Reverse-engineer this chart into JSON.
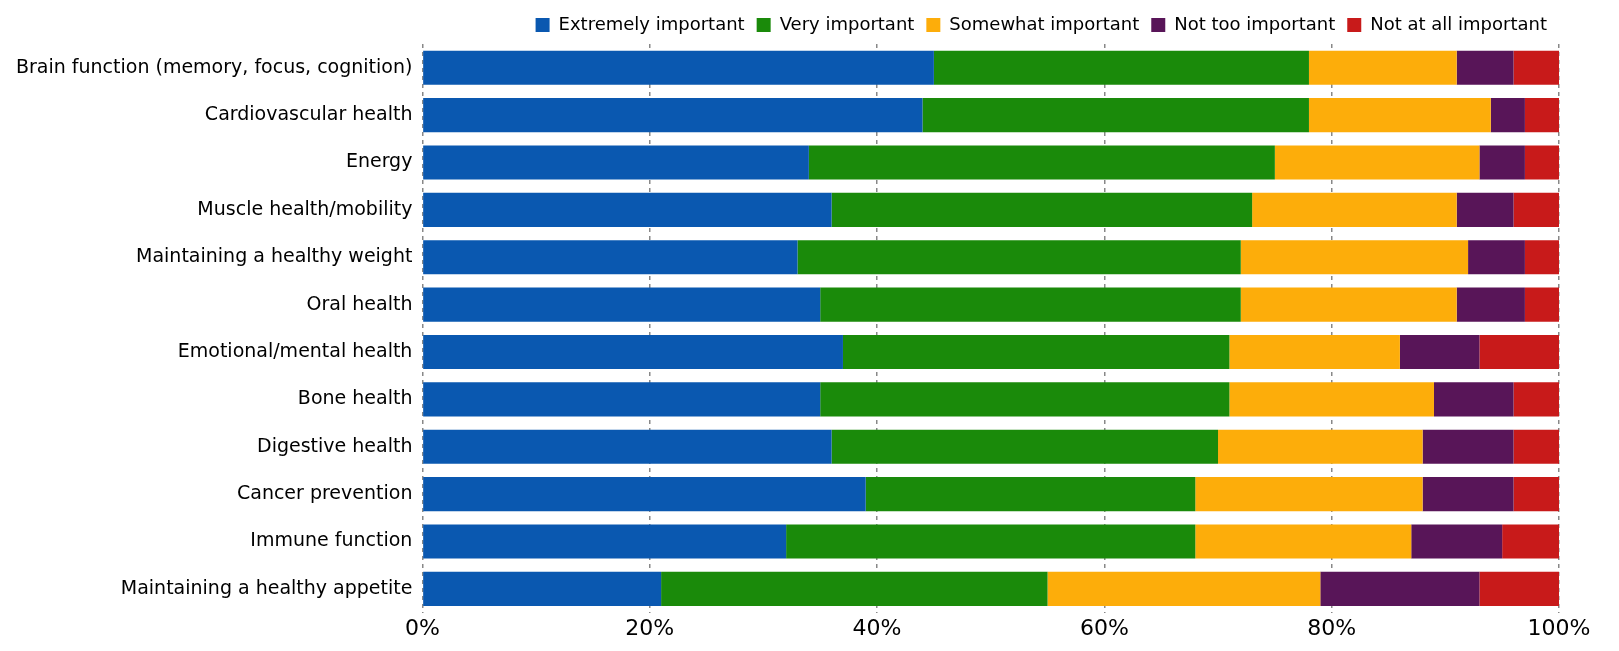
{
  "chart_data": {
    "type": "bar",
    "orientation": "horizontal",
    "stacked": true,
    "categories": [
      "Brain function (memory, focus, cognition)",
      "Cardiovascular health",
      "Energy",
      "Muscle health/mobility",
      "Maintaining a healthy weight",
      "Oral health",
      "Emotional/mental health",
      "Bone health",
      "Digestive health",
      "Cancer prevention",
      "Immune function",
      "Maintaining a healthy appetite"
    ],
    "series": [
      {
        "name": "Extremely important",
        "color": "#0a58b0",
        "values": [
          45,
          44,
          34,
          36,
          33,
          35,
          37,
          35,
          36,
          39,
          32,
          21
        ]
      },
      {
        "name": "Very important",
        "color": "#1a8a0a",
        "values": [
          33,
          34,
          41,
          37,
          39,
          37,
          34,
          36,
          34,
          29,
          36,
          34
        ]
      },
      {
        "name": "Somewhat important",
        "color": "#fdad0a",
        "values": [
          13,
          16,
          18,
          18,
          20,
          19,
          15,
          18,
          18,
          20,
          19,
          24
        ]
      },
      {
        "name": "Not too important",
        "color": "#581558",
        "values": [
          5,
          3,
          4,
          5,
          5,
          6,
          7,
          7,
          8,
          8,
          8,
          14
        ]
      },
      {
        "name": "Not at all important",
        "color": "#c81a1a",
        "values": [
          4,
          3,
          3,
          4,
          3,
          3,
          7,
          4,
          4,
          4,
          5,
          7
        ]
      }
    ],
    "xlim": [
      0,
      100
    ],
    "xticks": [
      {
        "value": 0,
        "label": "0%"
      },
      {
        "value": 20,
        "label": "20%"
      },
      {
        "value": 40,
        "label": "40%"
      },
      {
        "value": 60,
        "label": "60%"
      },
      {
        "value": 80,
        "label": "80%"
      },
      {
        "value": 100,
        "label": "100%"
      }
    ],
    "grid": "x",
    "legend": "top right"
  }
}
